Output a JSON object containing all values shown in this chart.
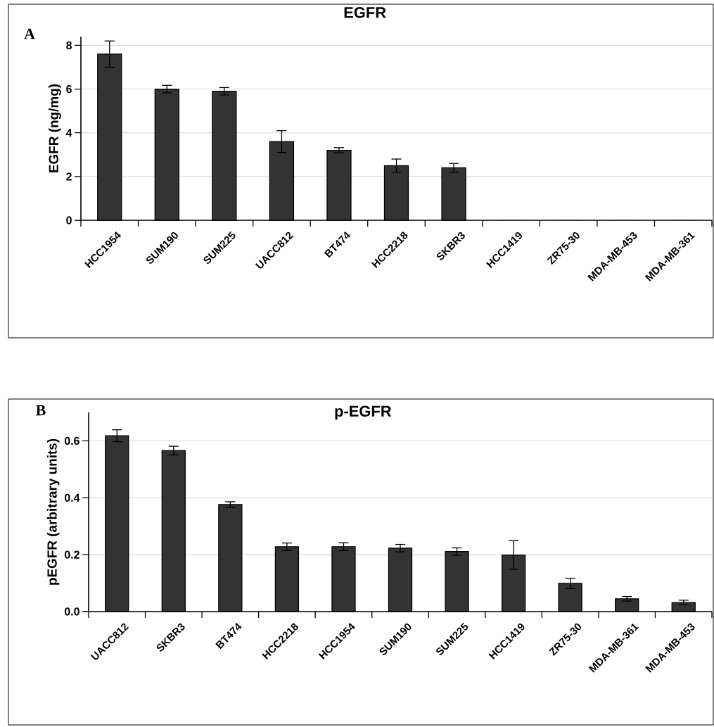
{
  "chart_data": [
    {
      "type": "bar",
      "title": "EGFR",
      "ylabel": "EGFR (ng/mg)",
      "annotations": [
        "A"
      ],
      "color": "#333333",
      "grid": "y",
      "categories": [
        "HCC1954",
        "SUM190",
        "SUM225",
        "UACC812",
        "BT474",
        "HCC2218",
        "SKBR3",
        "HCC1419",
        "ZR75-30",
        "MDA-MB-453",
        "MDA-MB-361"
      ],
      "values": [
        7.6,
        6.0,
        5.9,
        3.6,
        3.2,
        2.5,
        2.4,
        0,
        0,
        0,
        0
      ],
      "errors": [
        0.6,
        0.17,
        0.17,
        0.5,
        0.12,
        0.3,
        0.2,
        null,
        null,
        null,
        null
      ],
      "ylim": [
        0,
        8.4
      ],
      "yticks": [
        0,
        2,
        4,
        6,
        8
      ]
    },
    {
      "type": "bar",
      "title": "p-EGFR",
      "ylabel": "pEGFR (arbitrary units)",
      "annotations": [
        "B"
      ],
      "color": "#333333",
      "grid": "y",
      "categories": [
        "UACC812",
        "SKBR3",
        "BT474",
        "HCC2218",
        "HCC1954",
        "SUM190",
        "SUM225",
        "HCC1419",
        "ZR75-30",
        "MDA-MB-361",
        "MDA-MB-453"
      ],
      "values": [
        0.618,
        0.566,
        0.376,
        0.228,
        0.228,
        0.223,
        0.211,
        0.199,
        0.099,
        0.045,
        0.032
      ],
      "errors": [
        0.021,
        0.015,
        0.01,
        0.013,
        0.014,
        0.013,
        0.013,
        0.05,
        0.018,
        0.008,
        0.008
      ],
      "ylim": [
        0,
        0.7
      ],
      "yticks": [
        {
          "value": 0,
          "label": "0.0"
        },
        {
          "value": 0.2,
          "label": "0.2"
        },
        {
          "value": 0.4,
          "label": "0.4"
        },
        {
          "value": 0.6,
          "label": "0.6"
        }
      ]
    }
  ]
}
